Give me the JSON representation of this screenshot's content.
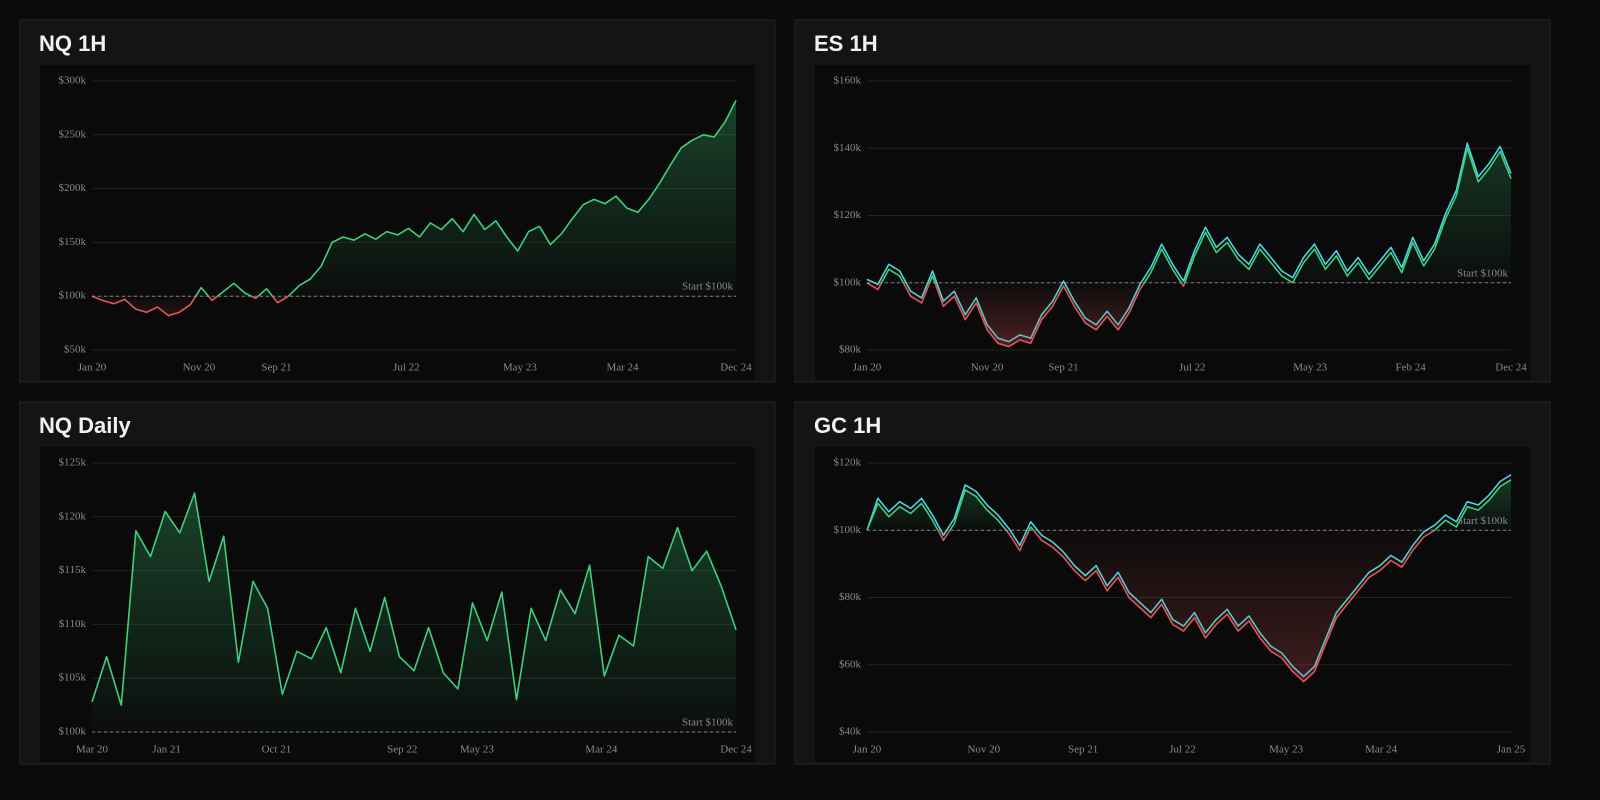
{
  "chart_data": [
    {
      "type": "line",
      "title": "NQ 1H",
      "series": [
        {
          "color_up": "#3ecf7a",
          "color_down": "#e05555",
          "values": [
            100000,
            96000,
            93000,
            97000,
            88000,
            85000,
            90000,
            82000,
            85000,
            92000,
            108000,
            96000,
            104000,
            112000,
            103000,
            98000,
            107000,
            94000,
            100000,
            110000,
            116000,
            128000,
            150000,
            155000,
            152000,
            158000,
            153000,
            160000,
            157000,
            163000,
            155000,
            168000,
            162000,
            172000,
            160000,
            176000,
            162000,
            170000,
            155000,
            142000,
            160000,
            165000,
            148000,
            158000,
            172000,
            185000,
            190000,
            186000,
            193000,
            182000,
            178000,
            190000,
            205000,
            222000,
            238000,
            245000,
            250000,
            248000,
            262000,
            282000
          ]
        }
      ],
      "xlim": [
        0,
        59
      ],
      "xticks": [
        {
          "value": 0,
          "label": "Jan 20"
        },
        {
          "value": 9.8,
          "label": "Nov 20"
        },
        {
          "value": 16.9,
          "label": "Sep 21"
        },
        {
          "value": 28.8,
          "label": "Jul 22"
        },
        {
          "value": 39.2,
          "label": "May 23"
        },
        {
          "value": 48.6,
          "label": "Mar 24"
        },
        {
          "value": 59,
          "label": "Dec 24"
        }
      ],
      "ylim": [
        50000,
        300000
      ],
      "yticks": [
        {
          "value": 50000,
          "label": "$50k"
        },
        {
          "value": 100000,
          "label": "$100k"
        },
        {
          "value": 150000,
          "label": "$150k"
        },
        {
          "value": 200000,
          "label": "$200k"
        },
        {
          "value": 250000,
          "label": "$250k"
        },
        {
          "value": 300000,
          "label": "$300k"
        }
      ],
      "baseline": {
        "value": 100000,
        "label": "Start $100k"
      },
      "grid": true
    },
    {
      "type": "line",
      "title": "ES 1H",
      "series": [
        {
          "color": "#4dd4e4",
          "values": [
            101000,
            99500,
            105500,
            103500,
            97500,
            95500,
            103500,
            94500,
            97500,
            90500,
            95500,
            87500,
            83500,
            82500,
            84500,
            83500,
            90500,
            94500,
            100500,
            94500,
            89500,
            87500,
            91500,
            87500,
            92500,
            99500,
            104500,
            111500,
            105500,
            100500,
            109500,
            116500,
            110500,
            113500,
            108500,
            105500,
            111500,
            107500,
            103500,
            101500,
            107500,
            111500,
            105500,
            109500,
            103500,
            107500,
            102500,
            106500,
            110500,
            104500,
            113500,
            106500,
            111500,
            120500,
            127500,
            141500,
            131500,
            135500,
            140500,
            132500
          ]
        },
        {
          "color_up": "#3ecf7a",
          "color_down": "#e05555",
          "values": [
            100000,
            98000,
            104000,
            102000,
            96000,
            94000,
            102000,
            93000,
            96000,
            89000,
            94000,
            86000,
            82000,
            81000,
            83000,
            82000,
            89000,
            93000,
            99000,
            93000,
            88000,
            86000,
            90000,
            86000,
            91000,
            98000,
            103000,
            110000,
            104000,
            99000,
            108000,
            115000,
            109000,
            112000,
            107000,
            104000,
            110000,
            106000,
            102000,
            100000,
            106000,
            110000,
            104000,
            108000,
            102000,
            106000,
            101000,
            105000,
            109000,
            103000,
            112000,
            105000,
            110000,
            119000,
            126000,
            140000,
            130000,
            134000,
            139000,
            131000
          ]
        }
      ],
      "xlim": [
        0,
        59
      ],
      "xticks": [
        {
          "value": 0,
          "label": "Jan 20"
        },
        {
          "value": 11,
          "label": "Nov 20"
        },
        {
          "value": 18,
          "label": "Sep 21"
        },
        {
          "value": 29.8,
          "label": "Jul 22"
        },
        {
          "value": 40.6,
          "label": "May 23"
        },
        {
          "value": 49.8,
          "label": "Feb 24"
        },
        {
          "value": 59,
          "label": "Dec 24"
        }
      ],
      "ylim": [
        80000,
        160000
      ],
      "yticks": [
        {
          "value": 80000,
          "label": "$80k"
        },
        {
          "value": 100000,
          "label": "$100k"
        },
        {
          "value": 120000,
          "label": "$120k"
        },
        {
          "value": 140000,
          "label": "$140k"
        },
        {
          "value": 160000,
          "label": "$160k"
        }
      ],
      "baseline": {
        "value": 100000,
        "label": "Start $100k"
      },
      "grid": true
    },
    {
      "type": "line",
      "title": "NQ Daily",
      "series": [
        {
          "color_up": "#3ecf7a",
          "color_down": "#e05555",
          "values": [
            102800,
            107000,
            102500,
            118700,
            116300,
            120500,
            118500,
            122200,
            114000,
            118200,
            106500,
            114000,
            111500,
            103500,
            107500,
            106800,
            109700,
            105500,
            111500,
            107500,
            112500,
            107000,
            105700,
            109700,
            105500,
            104000,
            112000,
            108500,
            113000,
            103000,
            111500,
            108500,
            113200,
            111000,
            115500,
            105200,
            109000,
            108000,
            116300,
            115200,
            119000,
            115000,
            116800,
            113500,
            109500
          ]
        }
      ],
      "xlim": [
        0,
        44
      ],
      "xticks": [
        {
          "value": 0,
          "label": "Mar 20"
        },
        {
          "value": 5.1,
          "label": "Jan 21"
        },
        {
          "value": 12.6,
          "label": "Oct 21"
        },
        {
          "value": 21.2,
          "label": "Sep 22"
        },
        {
          "value": 26.3,
          "label": "May 23"
        },
        {
          "value": 34.8,
          "label": "Mar 24"
        },
        {
          "value": 44,
          "label": "Dec 24"
        }
      ],
      "ylim": [
        100000,
        125000
      ],
      "yticks": [
        {
          "value": 100000,
          "label": "$100k"
        },
        {
          "value": 105000,
          "label": "$105k"
        },
        {
          "value": 110000,
          "label": "$110k"
        },
        {
          "value": 115000,
          "label": "$115k"
        },
        {
          "value": 120000,
          "label": "$120k"
        },
        {
          "value": 125000,
          "label": "$125k"
        }
      ],
      "baseline": {
        "value": 100000,
        "label": "Start $100k"
      },
      "grid": true
    },
    {
      "type": "line",
      "title": "GC 1H",
      "series": [
        {
          "color": "#4dd4e4",
          "values": [
            100000,
            109500,
            105500,
            108500,
            106500,
            109500,
            104500,
            98500,
            103500,
            113500,
            111500,
            107500,
            104500,
            100500,
            95500,
            102500,
            98500,
            96500,
            93500,
            89500,
            86500,
            89500,
            83500,
            87500,
            81500,
            78500,
            75500,
            79500,
            73500,
            71500,
            75500,
            69500,
            73500,
            76500,
            71500,
            74500,
            69500,
            65500,
            63500,
            59500,
            56500,
            59500,
            67500,
            75500,
            79500,
            83500,
            87500,
            89500,
            92500,
            90500,
            95500,
            99500,
            101500,
            104500,
            102500,
            108500,
            107500,
            110500,
            114500,
            116500
          ]
        },
        {
          "color_up": "#3ecf7a",
          "color_down": "#e05555",
          "values": [
            100000,
            108000,
            104000,
            107000,
            105000,
            108000,
            103000,
            97000,
            102000,
            112000,
            110000,
            106000,
            103000,
            99000,
            94000,
            101000,
            97000,
            95000,
            92000,
            88000,
            85000,
            88000,
            82000,
            86000,
            80000,
            77000,
            74000,
            78000,
            72000,
            70000,
            74000,
            68000,
            72000,
            75000,
            70000,
            73000,
            68000,
            64000,
            62000,
            58000,
            55000,
            58000,
            66000,
            74000,
            78000,
            82000,
            86000,
            88000,
            91000,
            89000,
            94000,
            98000,
            100000,
            103000,
            101000,
            107000,
            106000,
            109000,
            113000,
            115000
          ]
        }
      ],
      "xlim": [
        0,
        59
      ],
      "xticks": [
        {
          "value": 0,
          "label": "Jan 20"
        },
        {
          "value": 10.7,
          "label": "Nov 20"
        },
        {
          "value": 19.8,
          "label": "Sep 21"
        },
        {
          "value": 28.9,
          "label": "Jul 22"
        },
        {
          "value": 38.4,
          "label": "May 23"
        },
        {
          "value": 47.1,
          "label": "Mar 24"
        },
        {
          "value": 59,
          "label": "Jan 25"
        }
      ],
      "ylim": [
        40000,
        120000
      ],
      "yticks": [
        {
          "value": 40000,
          "label": "$40k"
        },
        {
          "value": 60000,
          "label": "$60k"
        },
        {
          "value": 80000,
          "label": "$80k"
        },
        {
          "value": 100000,
          "label": "$100k"
        },
        {
          "value": 120000,
          "label": "$120k"
        }
      ],
      "baseline": {
        "value": 100000,
        "label": "Start $100k"
      },
      "grid": true
    }
  ]
}
